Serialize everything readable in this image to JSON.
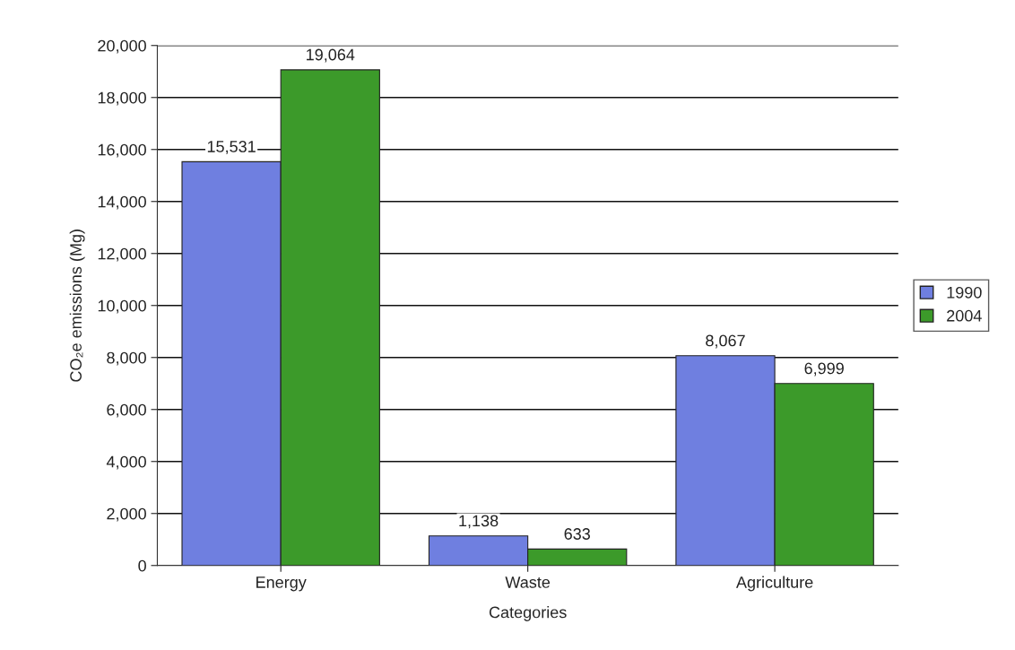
{
  "chart_data": {
    "type": "bar",
    "xlabel": "Categories",
    "ylabel": "CO₂e emissions (Mg)",
    "categories": [
      "Energy",
      "Waste",
      "Agriculture"
    ],
    "series": [
      {
        "name": "1990",
        "color": "#6f7fe0",
        "values": [
          15531,
          1138,
          8067
        ],
        "value_labels": [
          "15,531",
          "1,138",
          "8,067"
        ]
      },
      {
        "name": "2004",
        "color": "#3c9a2a",
        "values": [
          19064,
          633,
          6999
        ],
        "value_labels": [
          "19,064",
          "633",
          "6,999"
        ]
      }
    ],
    "ylim": [
      0,
      20000
    ],
    "yticks": [
      {
        "value": 0,
        "label": "0"
      },
      {
        "value": 2000,
        "label": "2,000"
      },
      {
        "value": 4000,
        "label": "4,000"
      },
      {
        "value": 6000,
        "label": "6,000"
      },
      {
        "value": 8000,
        "label": "8,000"
      },
      {
        "value": 10000,
        "label": "10,000"
      },
      {
        "value": 12000,
        "label": "12,000"
      },
      {
        "value": 14000,
        "label": "14,000"
      },
      {
        "value": 16000,
        "label": "16,000"
      },
      {
        "value": 18000,
        "label": "18,000"
      },
      {
        "value": 20000,
        "label": "20,000"
      }
    ],
    "grid": "y",
    "legend": "right"
  }
}
